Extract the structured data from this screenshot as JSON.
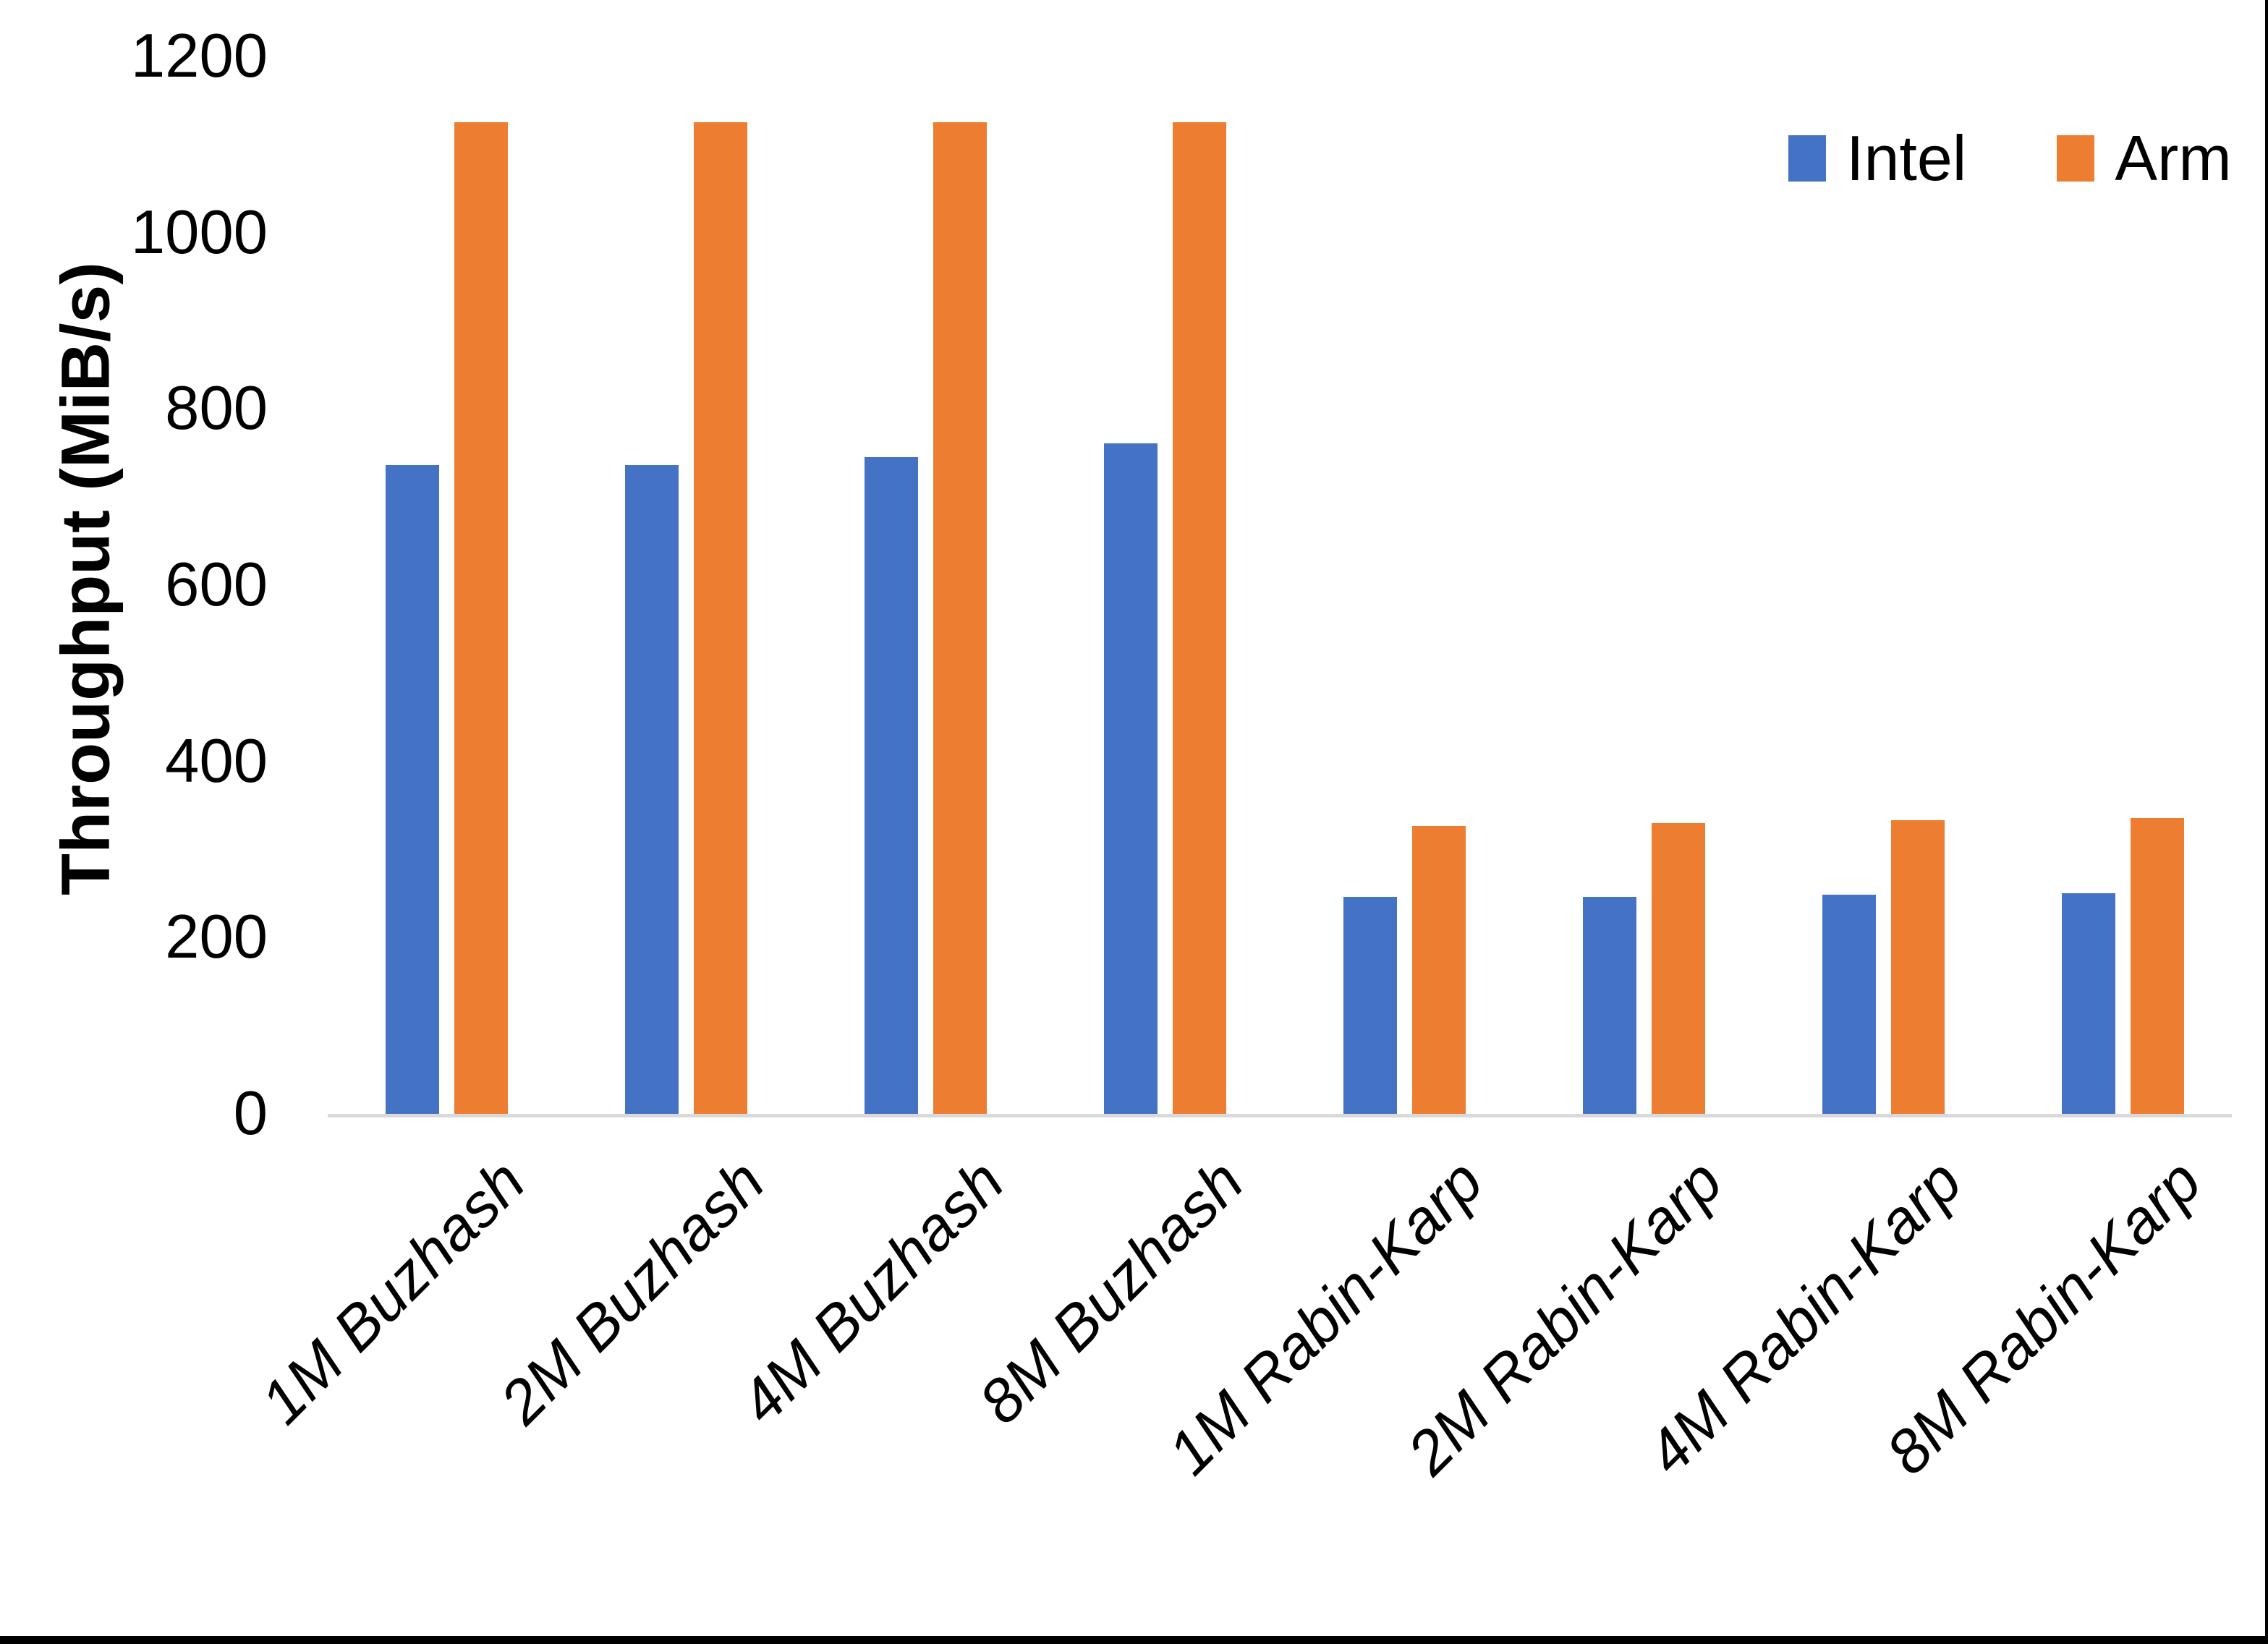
{
  "page": {
    "background": "#ffffff",
    "edge_border_color": "#000000"
  },
  "chart_data": {
    "type": "bar",
    "title": "",
    "xlabel": "",
    "ylabel": "Throughput (MiB/s)",
    "ylim": [
      0,
      1200
    ],
    "yticks": [
      0,
      200,
      400,
      600,
      800,
      1000,
      1200
    ],
    "grid": false,
    "legend_position": "top-right",
    "axis_line_color": "#d9d9d9",
    "categories": [
      "1M Buzhash",
      "2M Buzhash",
      "4M Buzhash",
      "8M Buzhash",
      "1M Rabin-Karp",
      "2M Rabin-Karp",
      "4M Rabin-Karp",
      "8M Rabin-Karp"
    ],
    "series": [
      {
        "name": "Intel",
        "color": "#4472C4",
        "values": [
          736,
          736,
          745,
          761,
          246,
          246,
          249,
          250
        ]
      },
      {
        "name": "Arm",
        "color": "#ED7D31",
        "values": [
          1125,
          1125,
          1125,
          1125,
          327,
          330,
          333,
          336
        ]
      }
    ]
  }
}
